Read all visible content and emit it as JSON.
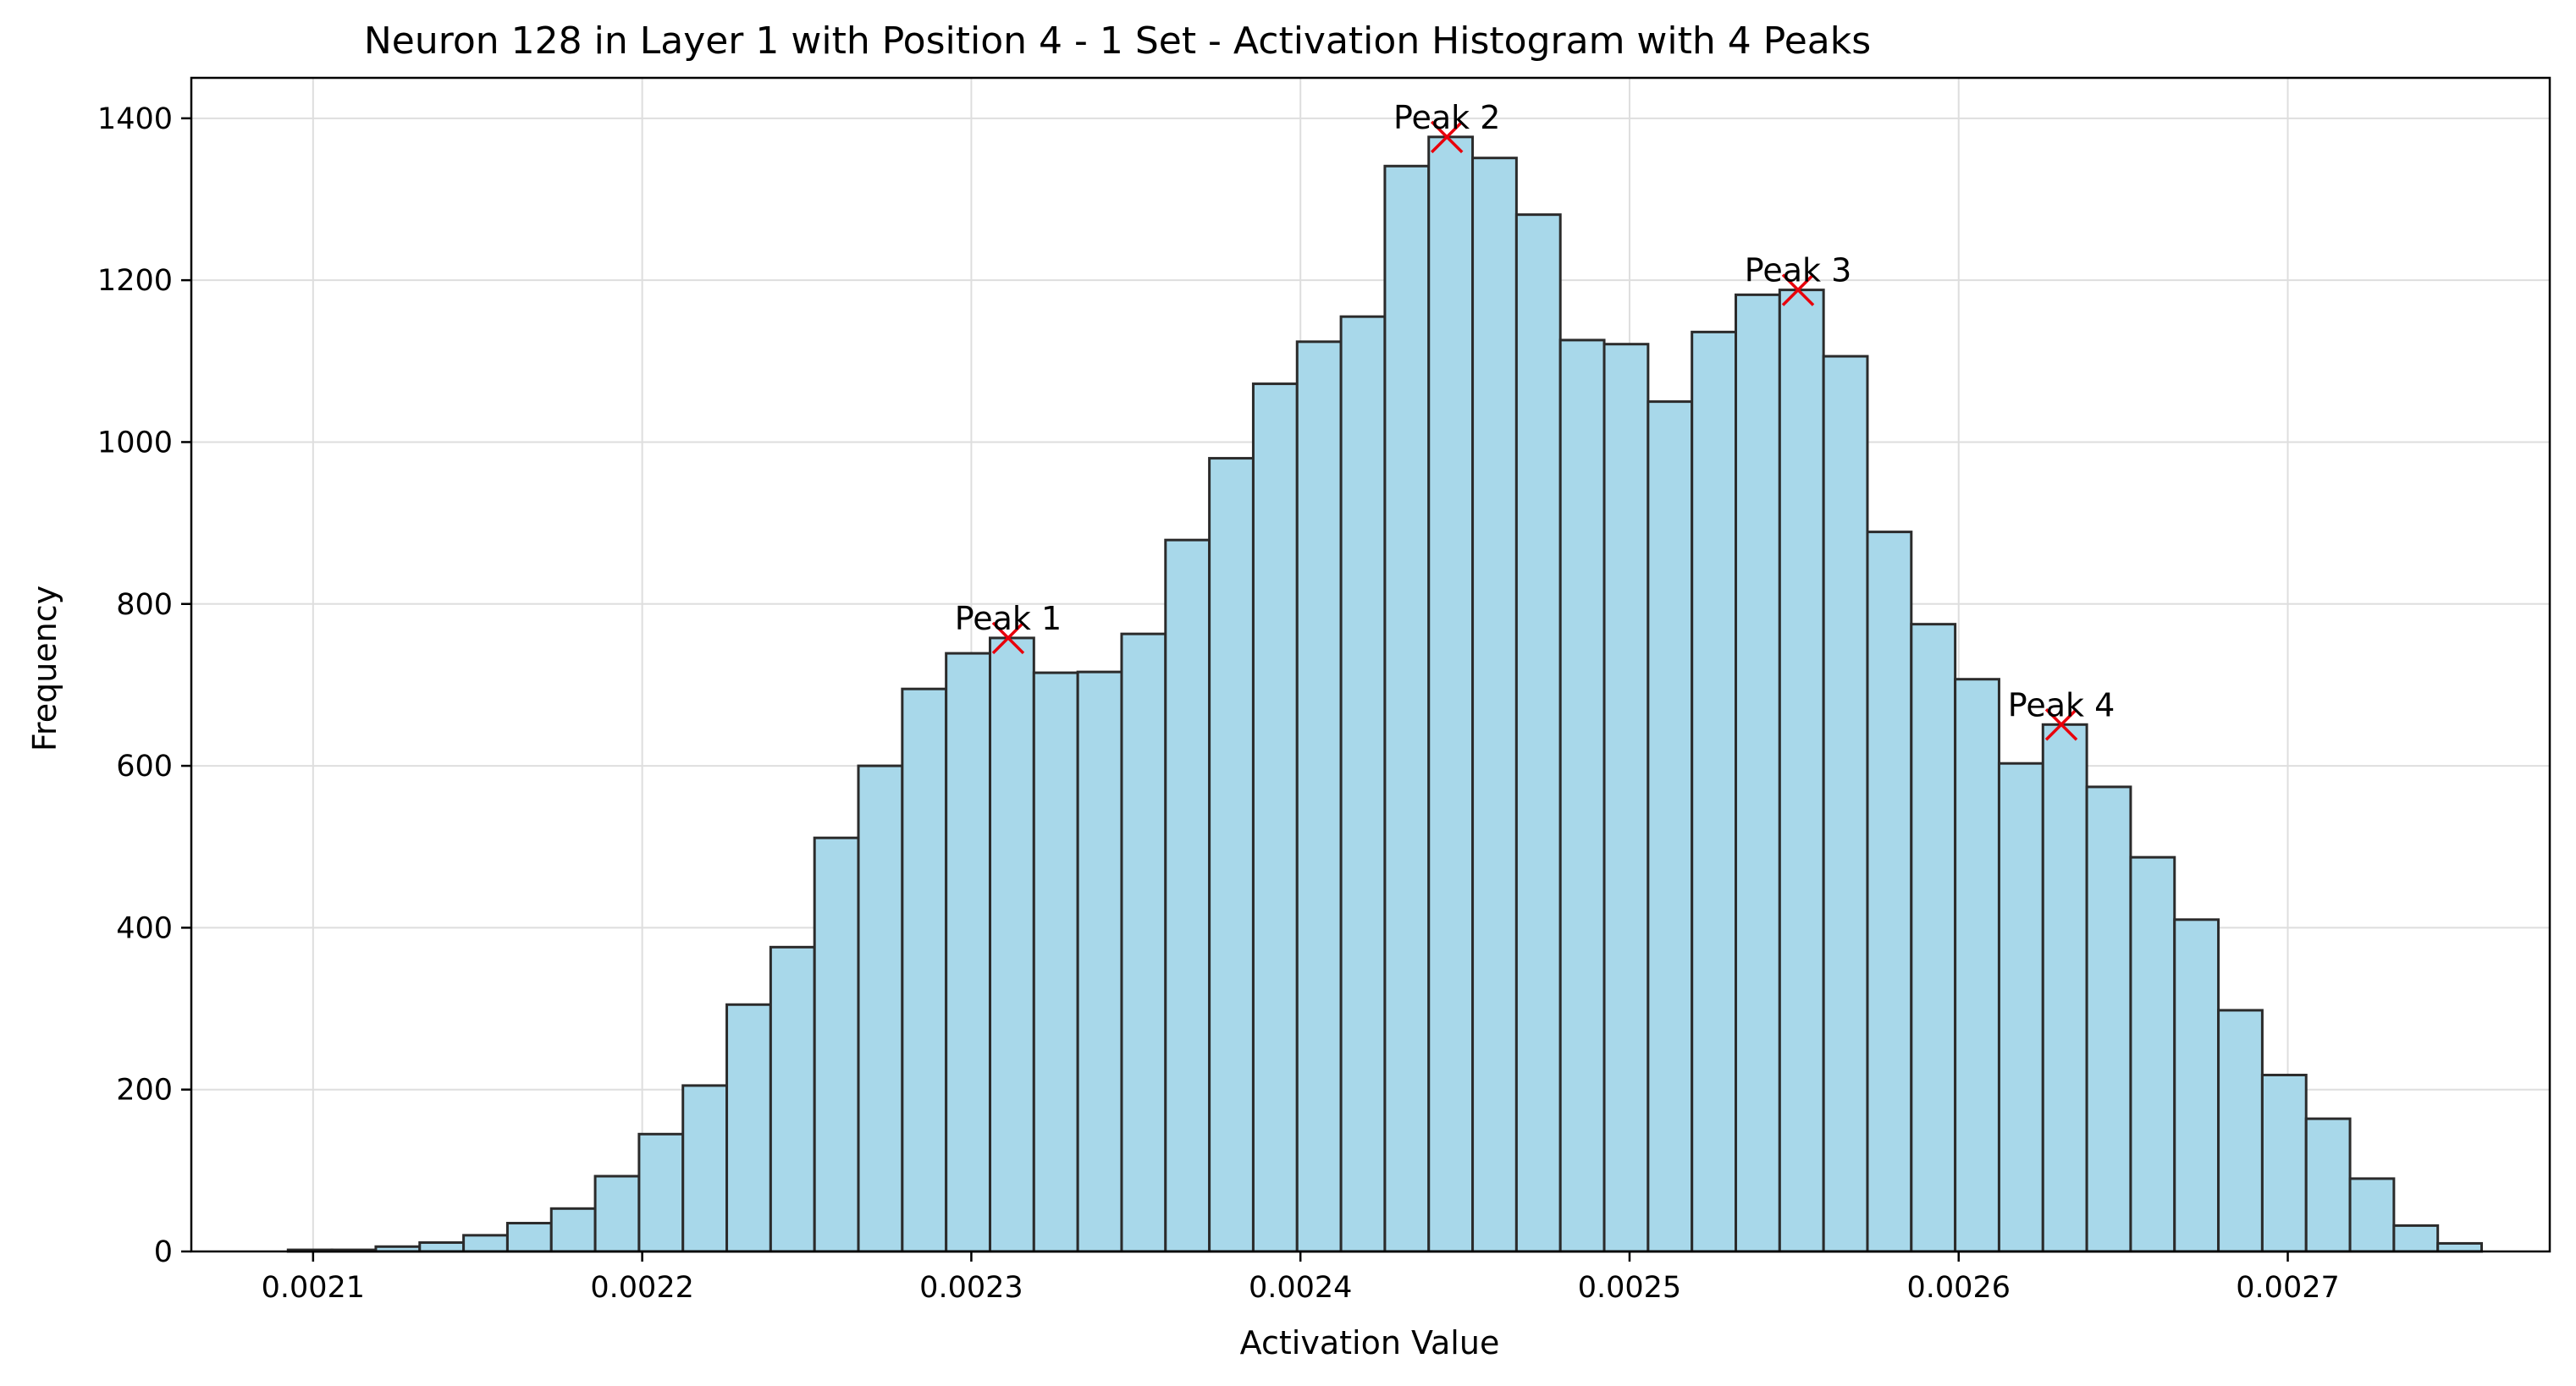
{
  "chart_data": {
    "type": "bar",
    "title": "Neuron 128 in Layer 1 with Position 4 - 1 Set - Activation Histogram with 4 Peaks",
    "xlabel": "Activation Value",
    "ylabel": "Frequency",
    "xlim": [
      0.002063,
      0.0027796
    ],
    "ylim": [
      0,
      1450
    ],
    "grid": true,
    "bar_color": "#a8d8ea",
    "bar_edge_color": "#2b2b2b",
    "peak_marker_color": "#e8000b",
    "bin_width": 1.333e-05,
    "bin_edges_start": 0.0020924,
    "values": [
      2,
      2,
      6,
      11,
      20,
      35,
      53,
      93,
      145,
      205,
      305,
      376,
      511,
      600,
      695,
      739,
      758,
      715,
      716,
      763,
      879,
      980,
      1072,
      1124,
      1155,
      1341,
      1377,
      1351,
      1281,
      1126,
      1121,
      1050,
      1136,
      1182,
      1188,
      1106,
      889,
      775,
      707,
      603,
      651,
      574,
      487,
      410,
      298,
      218,
      164,
      90,
      32,
      10
    ],
    "x_ticks": [
      {
        "value": 0.0021,
        "label": "0.0021"
      },
      {
        "value": 0.0022,
        "label": "0.0022"
      },
      {
        "value": 0.0023,
        "label": "0.0023"
      },
      {
        "value": 0.0024,
        "label": "0.0024"
      },
      {
        "value": 0.0025,
        "label": "0.0025"
      },
      {
        "value": 0.0026,
        "label": "0.0026"
      },
      {
        "value": 0.0027,
        "label": "0.0027"
      }
    ],
    "y_ticks": [
      {
        "value": 0,
        "label": "0"
      },
      {
        "value": 200,
        "label": "200"
      },
      {
        "value": 400,
        "label": "400"
      },
      {
        "value": 600,
        "label": "600"
      },
      {
        "value": 800,
        "label": "800"
      },
      {
        "value": 1000,
        "label": "1000"
      },
      {
        "value": 1200,
        "label": "1200"
      },
      {
        "value": 1400,
        "label": "1400"
      }
    ],
    "peaks": [
      {
        "label": "Peak 1",
        "x": 0.0023112,
        "y": 758
      },
      {
        "label": "Peak 2",
        "x": 0.0024445,
        "y": 1377
      },
      {
        "label": "Peak 3",
        "x": 0.0025512,
        "y": 1188
      },
      {
        "label": "Peak 4",
        "x": 0.0026312,
        "y": 651
      }
    ]
  }
}
